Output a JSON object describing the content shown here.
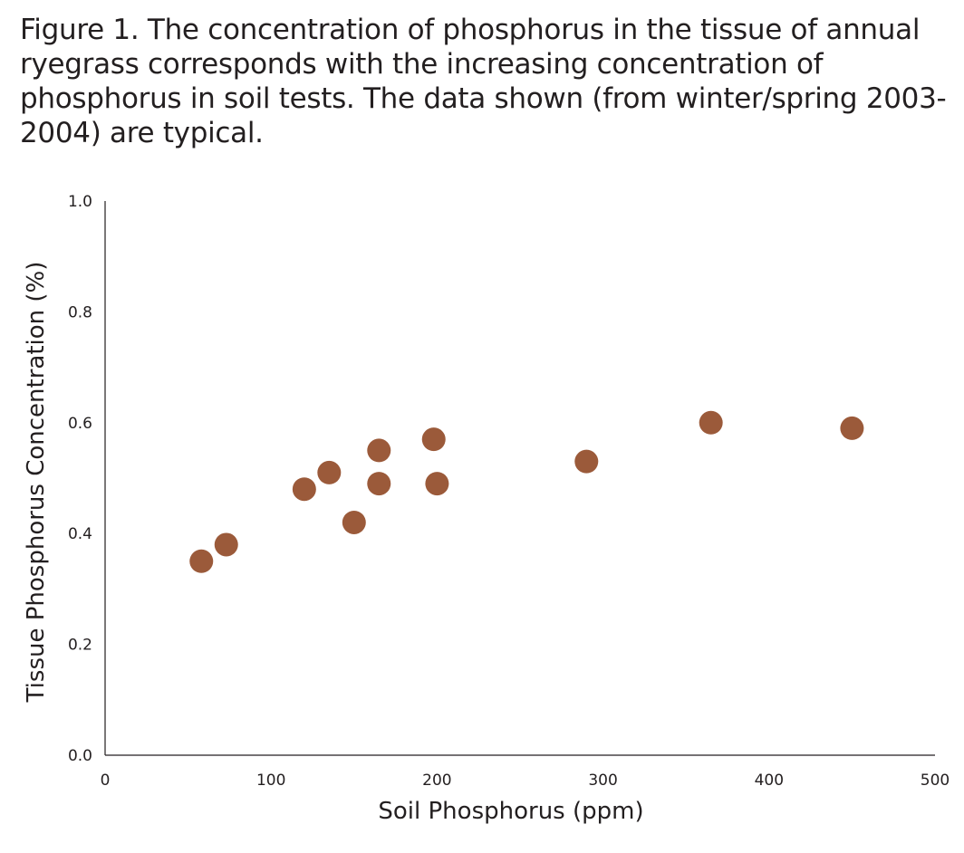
{
  "caption": "Figure 1. The concentration of phosphorus in the tissue of annual ryegrass corresponds with the increasing concentration of phosphorus in soil tests. The data shown (from winter/spring 2003-2004) are typical.",
  "chart_data": {
    "type": "scatter",
    "xlabel": "Soil Phosphorus (ppm)",
    "ylabel": "Tissue Phosphorus Concentration (%)",
    "xlim": [
      0,
      500
    ],
    "ylim": [
      0.0,
      1.0
    ],
    "x_ticks": [
      "0",
      "100",
      "200",
      "300",
      "400",
      "500"
    ],
    "y_ticks": [
      "0.0",
      "0.2",
      "0.4",
      "0.6",
      "0.8",
      "1.0"
    ],
    "grid": false,
    "legend": "none",
    "marker_color": "#9b5a3a",
    "points": [
      {
        "x": 58,
        "y": 0.35
      },
      {
        "x": 73,
        "y": 0.38
      },
      {
        "x": 120,
        "y": 0.48
      },
      {
        "x": 135,
        "y": 0.51
      },
      {
        "x": 150,
        "y": 0.42
      },
      {
        "x": 165,
        "y": 0.55
      },
      {
        "x": 165,
        "y": 0.49
      },
      {
        "x": 198,
        "y": 0.57
      },
      {
        "x": 200,
        "y": 0.49
      },
      {
        "x": 290,
        "y": 0.53
      },
      {
        "x": 365,
        "y": 0.6
      },
      {
        "x": 450,
        "y": 0.59
      }
    ]
  }
}
